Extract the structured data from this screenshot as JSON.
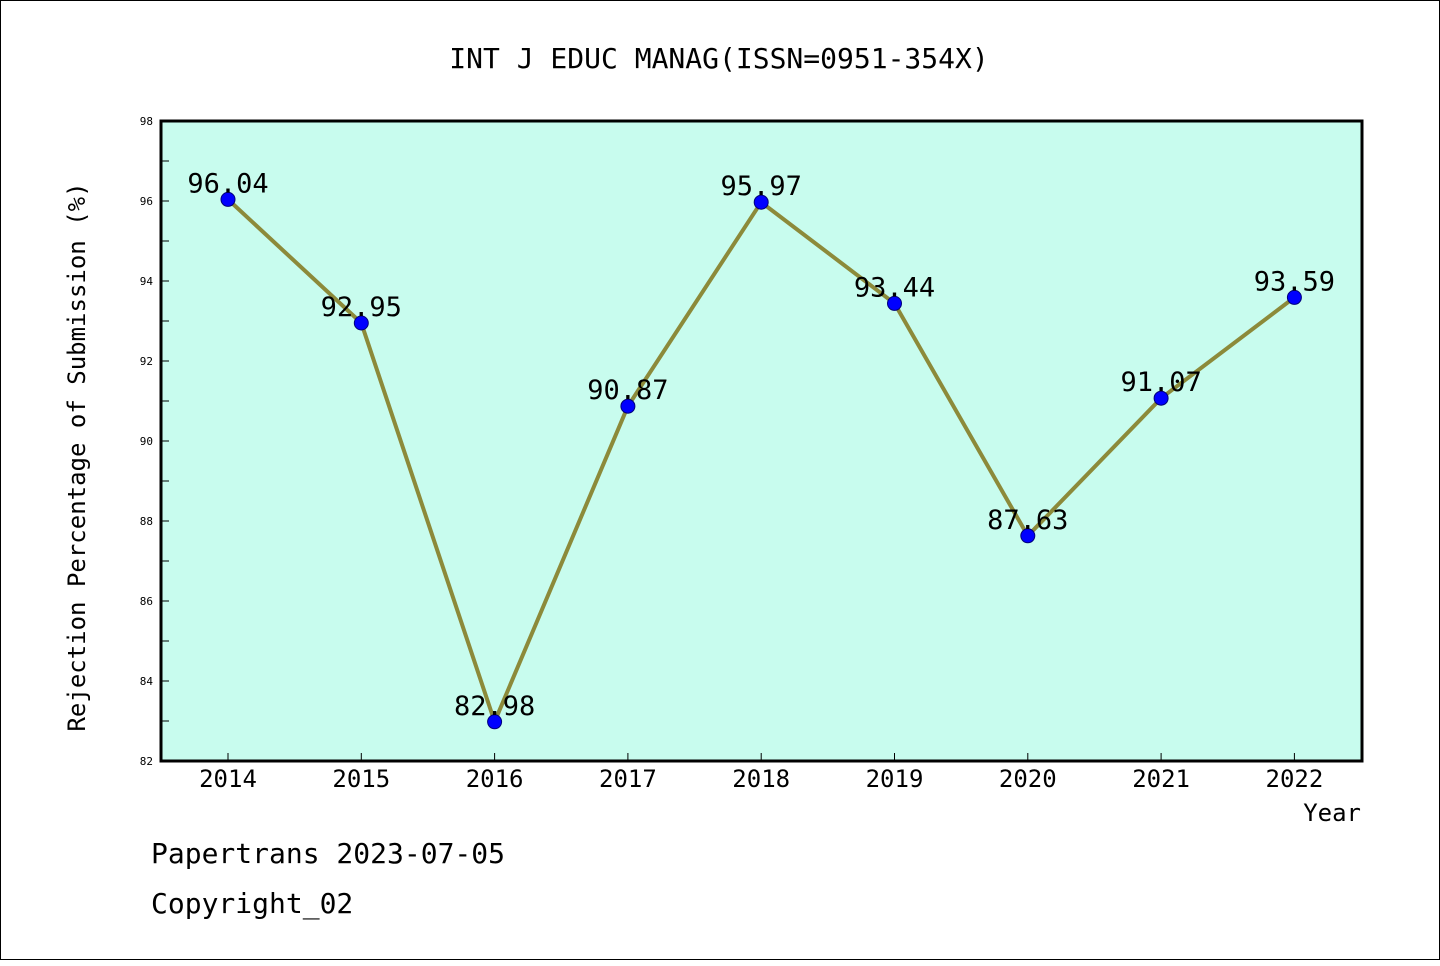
{
  "footer": {
    "line1": "Papertrans 2023-07-05",
    "line2": "Copyright_02"
  },
  "chart_data": {
    "type": "line",
    "title": "INT J EDUC MANAG(ISSN=0951-354X)",
    "xlabel": "Year",
    "ylabel": "Rejection Percentage of Submission (%)",
    "categories": [
      "2014",
      "2015",
      "2016",
      "2017",
      "2018",
      "2019",
      "2020",
      "2021",
      "2022"
    ],
    "series": [
      {
        "values": [
          96.04,
          92.95,
          82.98,
          90.87,
          95.97,
          93.44,
          87.63,
          91.07,
          93.59
        ],
        "data_labels": [
          "96.04",
          "92.95",
          "82.98",
          "90.87",
          "95.97",
          "93.44",
          "87.63",
          "91.07",
          "93.59"
        ]
      }
    ],
    "ylim": [
      82,
      98
    ],
    "yticks": [
      "82",
      "84",
      "86",
      "88",
      "90",
      "92",
      "94",
      "96",
      "98"
    ],
    "grid": false,
    "colors": {
      "plot_background": "#c8fcee",
      "line": "#8c8a3a",
      "marker": "#0000ff"
    }
  }
}
